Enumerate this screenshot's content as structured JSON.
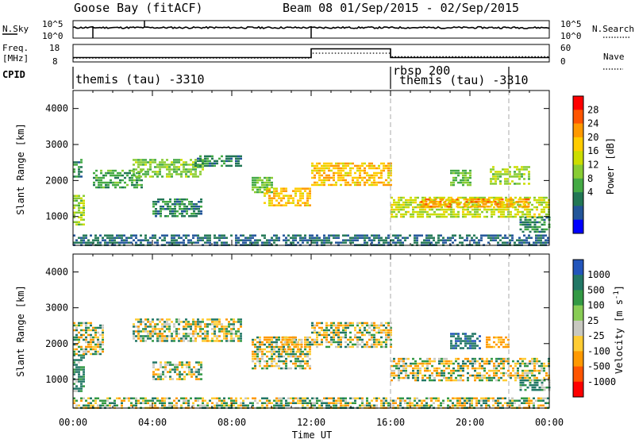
{
  "header": {
    "site": "Goose Bay (fitACF)",
    "beam_range": "Beam 08  01/Sep/2015 - 02/Sep/2015"
  },
  "noise_panel": {
    "left_label": "N.Sky",
    "left_ticks": [
      "10^5",
      "10^0"
    ],
    "right_ticks": [
      "10^5",
      "10^0"
    ],
    "right_label": "N.Search"
  },
  "freq_panel": {
    "left_label_1": "Freq.",
    "left_label_2": "[MHz]",
    "left_ticks": [
      "18",
      "8"
    ],
    "right_ticks": [
      "60",
      "0"
    ],
    "right_label": "Nave"
  },
  "cpid": {
    "label": "CPID",
    "modes": [
      "themis (tau) -3310",
      "rbsp 200",
      "themis (tau) -3310"
    ]
  },
  "axes": {
    "ylabel": "Slant Range [km]",
    "xlabel": "Time UT",
    "yticks": [
      "4000",
      "3000",
      "2000",
      "1000"
    ],
    "xticks": [
      "00:00",
      "04:00",
      "08:00",
      "12:00",
      "16:00",
      "20:00",
      "00:00"
    ]
  },
  "colorbars": {
    "power": {
      "label": "Power [dB]",
      "ticks": [
        "28",
        "24",
        "20",
        "16",
        "12",
        "8",
        "4"
      ],
      "colors": [
        "#ff0000",
        "#ff5500",
        "#ff9900",
        "#ffcc00",
        "#ccdd00",
        "#88cc33",
        "#44aa44",
        "#227755",
        "#225599",
        "#0000ff"
      ]
    },
    "velocity": {
      "label": "Velocity [m s",
      "label_sup": "-1",
      "label_end": "]",
      "ticks": [
        "1000",
        "500",
        "100",
        "25",
        "-25",
        "-100",
        "-500",
        "-1000"
      ],
      "colors": [
        "#2255bb",
        "#227766",
        "#339944",
        "#88cc55",
        "#c8c8c0",
        "#ffcc33",
        "#ff9900",
        "#ff5500",
        "#ff0000"
      ]
    }
  },
  "chart_data": [
    {
      "type": "line",
      "panel": "noise",
      "x_unit": "hours UT",
      "x": [
        0,
        2,
        4,
        6,
        8,
        10,
        12,
        14,
        16,
        18,
        20,
        22,
        24
      ],
      "series": [
        {
          "values": [
            3,
            3,
            3,
            3,
            3,
            3,
            3,
            3,
            3,
            3,
            3,
            3,
            3
          ]
        }
      ],
      "spikes_at_hours": [
        1.0,
        3.6,
        12.0
      ],
      "ylim": [
        "10^0",
        "10^5"
      ]
    },
    {
      "type": "line",
      "panel": "frequency",
      "x_unit": "hours UT",
      "series": [
        {
          "x": [
            0,
            12,
            12,
            16,
            16,
            24
          ],
          "values": [
            10.5,
            10.5,
            15.5,
            15.5,
            10.5,
            10.5
          ]
        },
        {
          "x": [
            0,
            12,
            12,
            16,
            16,
            24
          ],
          "values": [
            13,
            13,
            30,
            30,
            18,
            18
          ]
        }
      ],
      "ylim_freq": [
        8,
        18
      ],
      "ylim_nave": [
        0,
        60
      ]
    },
    {
      "type": "heatmap",
      "panel": "power",
      "x_unit": "hours UT",
      "xlim": [
        0,
        24
      ],
      "y_unit": "km",
      "ylim": [
        200,
        4500
      ],
      "clim": [
        0,
        30
      ],
      "bands": [
        {
          "t0": 0.0,
          "t1": 0.5,
          "r0": 800,
          "r1": 1600,
          "v": 14
        },
        {
          "t0": 0.0,
          "t1": 0.4,
          "r0": 2100,
          "r1": 2600,
          "v": 8
        },
        {
          "t0": 1.0,
          "t1": 3.5,
          "r0": 1800,
          "r1": 2300,
          "v": 10
        },
        {
          "t0": 3.0,
          "t1": 6.5,
          "r0": 2100,
          "r1": 2600,
          "v": 13
        },
        {
          "t0": 6.0,
          "t1": 8.5,
          "r0": 2400,
          "r1": 2700,
          "v": 8
        },
        {
          "t0": 4.0,
          "t1": 6.5,
          "r0": 1000,
          "r1": 1500,
          "v": 8
        },
        {
          "t0": 9.0,
          "t1": 10.0,
          "r0": 1700,
          "r1": 2100,
          "v": 12
        },
        {
          "t0": 9.6,
          "t1": 12.0,
          "r0": 1300,
          "r1": 1800,
          "v": 20
        },
        {
          "t0": 12.0,
          "t1": 16.0,
          "r0": 1900,
          "r1": 2500,
          "v": 20
        },
        {
          "t0": 16.0,
          "t1": 24.0,
          "r0": 1000,
          "r1": 1550,
          "v": 16
        },
        {
          "t0": 17.5,
          "t1": 23.0,
          "r0": 1300,
          "r1": 1500,
          "v": 22
        },
        {
          "t0": 19.0,
          "t1": 20.0,
          "r0": 1900,
          "r1": 2300,
          "v": 12
        },
        {
          "t0": 21.0,
          "t1": 23.0,
          "r0": 1900,
          "r1": 2400,
          "v": 14
        },
        {
          "t0": 22.5,
          "t1": 24.0,
          "r0": 600,
          "r1": 1000,
          "v": 8
        },
        {
          "t0": 0.0,
          "t1": 24.0,
          "r0": 200,
          "r1": 500,
          "v": 6
        }
      ]
    },
    {
      "type": "heatmap",
      "panel": "velocity",
      "x_unit": "hours UT",
      "xlim": [
        0,
        24
      ],
      "y_unit": "km",
      "ylim": [
        200,
        4500
      ],
      "clim": [
        -1000,
        1000
      ],
      "bands": [
        {
          "t0": 0.0,
          "t1": 0.6,
          "r0": 700,
          "r1": 1700,
          "v": 200
        },
        {
          "t0": 0.0,
          "t1": 1.5,
          "r0": 1700,
          "r1": 2600,
          "v": 0
        },
        {
          "t0": 3.0,
          "t1": 8.5,
          "r0": 2100,
          "r1": 2700,
          "v": 0
        },
        {
          "t0": 4.0,
          "t1": 6.5,
          "r0": 1000,
          "r1": 1500,
          "v": 0
        },
        {
          "t0": 9.0,
          "t1": 12.0,
          "r0": 1300,
          "r1": 2200,
          "v": 0
        },
        {
          "t0": 10.5,
          "t1": 11.5,
          "r0": 1800,
          "r1": 2200,
          "v": -150
        },
        {
          "t0": 12.0,
          "t1": 16.0,
          "r0": 1900,
          "r1": 2600,
          "v": 0
        },
        {
          "t0": 16.0,
          "t1": 24.0,
          "r0": 1000,
          "r1": 1600,
          "v": 0
        },
        {
          "t0": 19.0,
          "t1": 20.5,
          "r0": 1900,
          "r1": 2300,
          "v": 400
        },
        {
          "t0": 20.8,
          "t1": 22.0,
          "r0": 1900,
          "r1": 2200,
          "v": -200
        },
        {
          "t0": 22.5,
          "t1": 24.0,
          "r0": 700,
          "r1": 1000,
          "v": 150
        },
        {
          "t0": 0.0,
          "t1": 24.0,
          "r0": 200,
          "r1": 500,
          "v": 0
        }
      ]
    }
  ]
}
